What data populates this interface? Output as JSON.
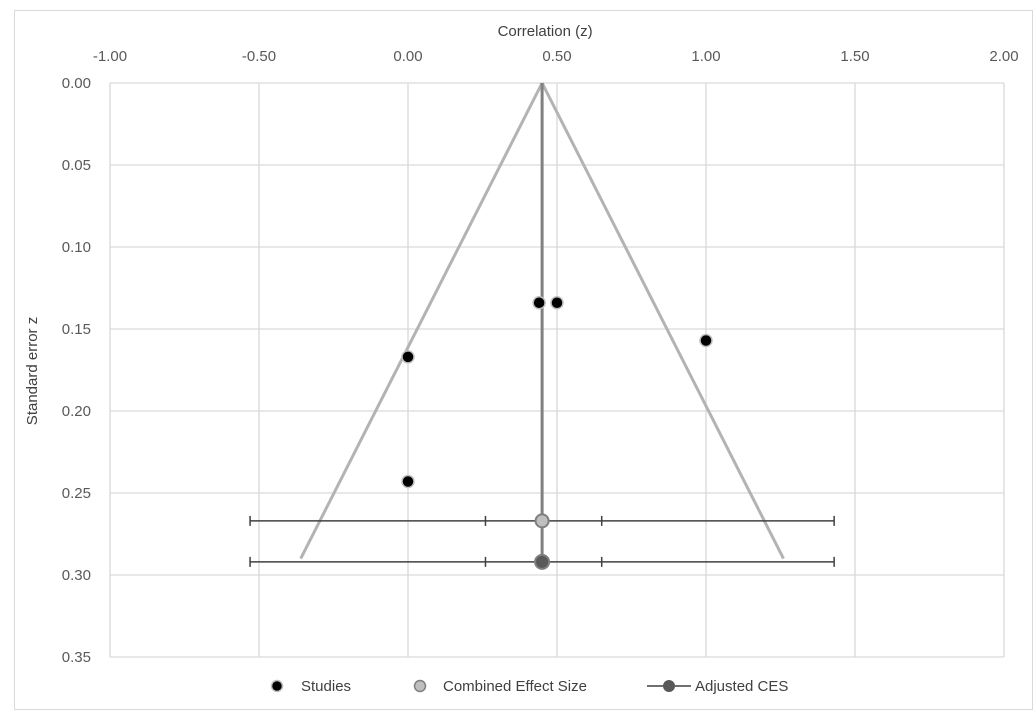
{
  "chart_data": {
    "type": "scatter",
    "xlabel": "Correlation (z)",
    "ylabel": "Standard error z",
    "x_axis_position": "top",
    "y_axis_reversed": true,
    "xlim": [
      -1.0,
      2.0
    ],
    "ylim": [
      0.0,
      0.35
    ],
    "x_ticks": [
      "-1.00",
      "-0.50",
      "0.00",
      "0.50",
      "1.00",
      "1.50",
      "2.00"
    ],
    "y_ticks": [
      "0.00",
      "0.05",
      "0.10",
      "0.15",
      "0.20",
      "0.25",
      "0.30",
      "0.35"
    ],
    "grid": true,
    "legend_position": "bottom",
    "series": [
      {
        "name": "Studies",
        "color": "#000000",
        "points": [
          {
            "x": 0.44,
            "y": 0.134
          },
          {
            "x": 0.5,
            "y": 0.134
          },
          {
            "x": 1.0,
            "y": 0.157
          },
          {
            "x": 0.0,
            "y": 0.167
          },
          {
            "x": 0.0,
            "y": 0.243
          }
        ]
      },
      {
        "name": "Combined Effect Size",
        "color": "#bfbfbf",
        "points": [
          {
            "x": 0.45,
            "y": 0.267
          }
        ],
        "ci_inner": [
          0.26,
          0.65
        ],
        "ci_outer": [
          -0.53,
          1.43
        ]
      },
      {
        "name": "Adjusted CES",
        "color": "#595959",
        "points": [
          {
            "x": 0.45,
            "y": 0.292
          }
        ],
        "ci_inner": [
          0.26,
          0.65
        ],
        "ci_outer": [
          -0.53,
          1.43
        ]
      }
    ],
    "funnel": {
      "color": "#b3b3b3",
      "apex": {
        "x": 0.45,
        "y": 0.0
      },
      "left_base": {
        "x": -0.36,
        "y": 0.29
      },
      "right_base": {
        "x": 1.26,
        "y": 0.29
      },
      "center_line_x": 0.45
    }
  }
}
